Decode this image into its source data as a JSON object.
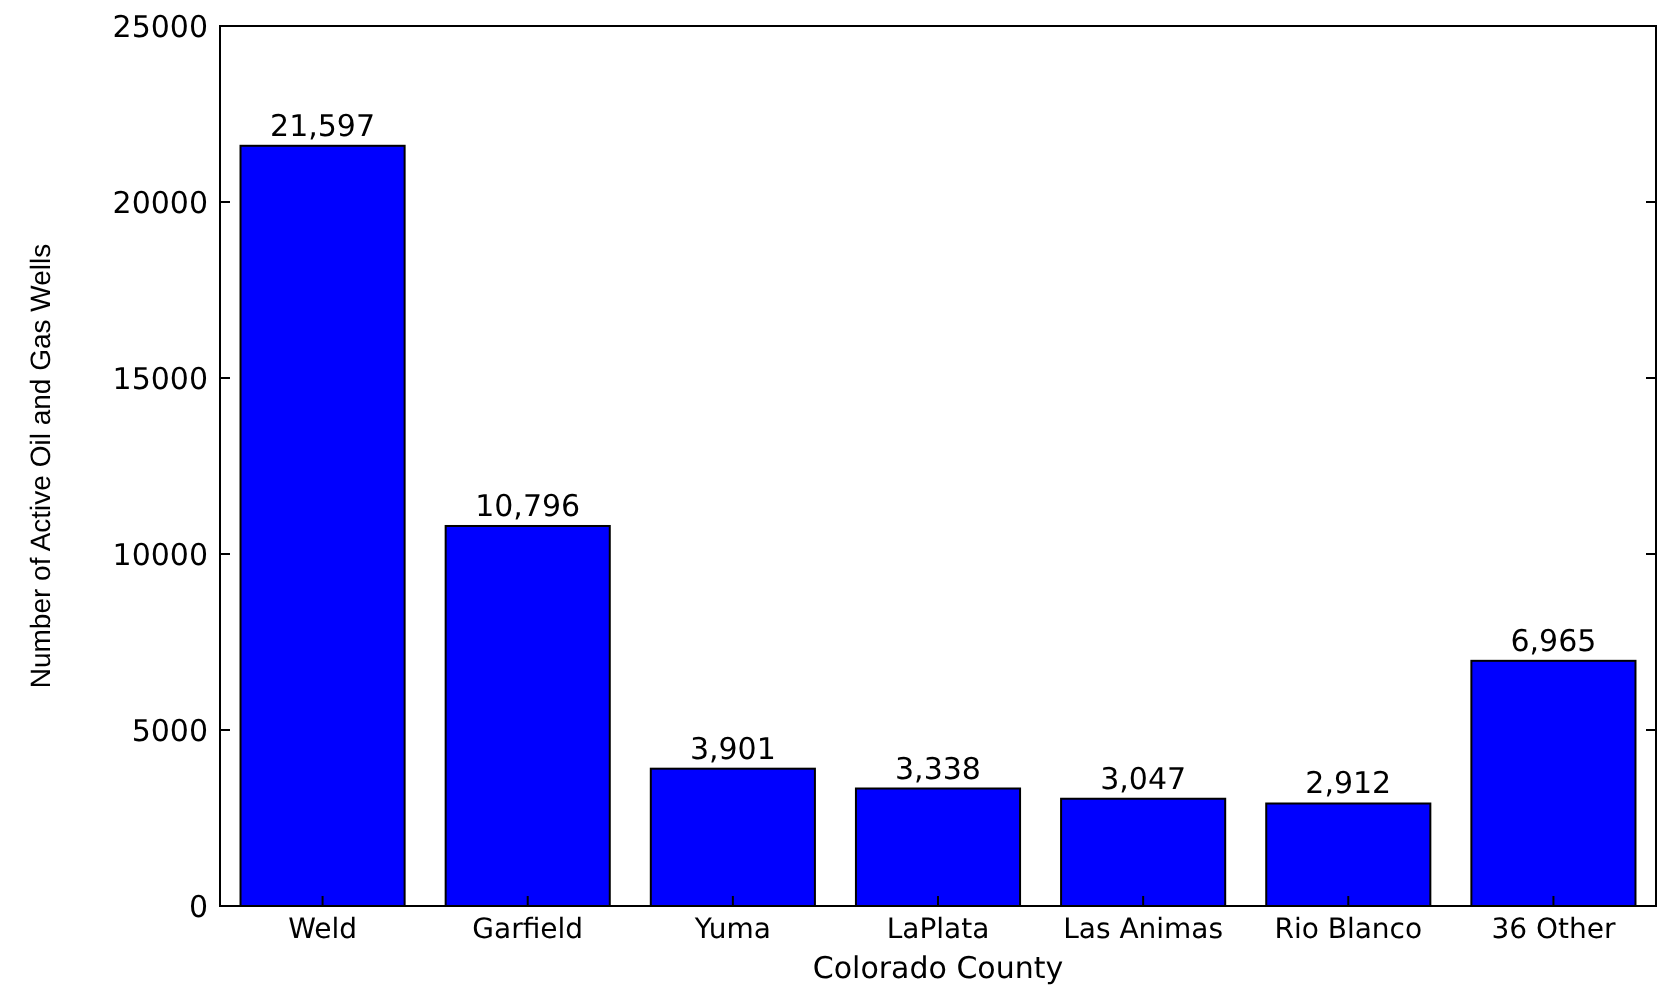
{
  "chart_data": {
    "type": "bar",
    "xlabel": "Colorado County",
    "ylabel": "Number of Active Oil and Gas Wells",
    "categories": [
      "Weld",
      "Garfield",
      "Yuma",
      "LaPlata",
      "Las Animas",
      "Rio Blanco",
      "36 Other"
    ],
    "values": [
      21597,
      10796,
      3901,
      3338,
      3047,
      2912,
      6965
    ],
    "value_labels": [
      "21,597",
      "10,796",
      "3,901",
      "3,338",
      "3,047",
      "2,912",
      "6,965"
    ],
    "color": "#0000ff",
    "ylim": [
      0,
      25000
    ],
    "yticks": [
      0,
      5000,
      10000,
      15000,
      20000,
      25000
    ],
    "grid": false
  }
}
